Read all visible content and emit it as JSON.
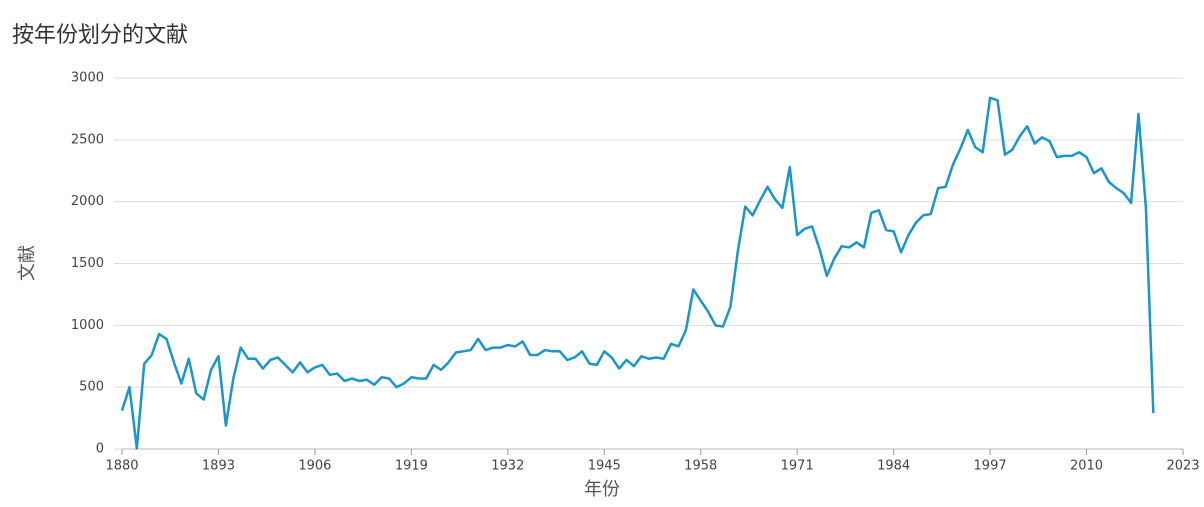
{
  "chart_data": {
    "type": "line",
    "title": "按年份划分的文献",
    "x_label": "年份",
    "y_label": "文献",
    "x": [
      1880,
      1881,
      1882,
      1883,
      1884,
      1885,
      1886,
      1887,
      1888,
      1889,
      1890,
      1891,
      1892,
      1893,
      1894,
      1895,
      1896,
      1897,
      1898,
      1899,
      1900,
      1901,
      1902,
      1903,
      1904,
      1905,
      1906,
      1907,
      1908,
      1909,
      1910,
      1911,
      1912,
      1913,
      1914,
      1915,
      1916,
      1917,
      1918,
      1919,
      1920,
      1921,
      1922,
      1923,
      1924,
      1925,
      1926,
      1927,
      1928,
      1929,
      1930,
      1931,
      1932,
      1933,
      1934,
      1935,
      1936,
      1937,
      1938,
      1939,
      1940,
      1941,
      1942,
      1943,
      1944,
      1945,
      1946,
      1947,
      1948,
      1949,
      1950,
      1951,
      1952,
      1953,
      1954,
      1955,
      1956,
      1957,
      1958,
      1959,
      1960,
      1961,
      1962,
      1963,
      1964,
      1965,
      1966,
      1967,
      1968,
      1969,
      1970,
      1971,
      1972,
      1973,
      1974,
      1975,
      1976,
      1977,
      1978,
      1979,
      1980,
      1981,
      1982,
      1983,
      1984,
      1985,
      1986,
      1987,
      1988,
      1989,
      1990,
      1991,
      1992,
      1993,
      1994,
      1995,
      1996,
      1997,
      1998,
      1999,
      2000,
      2001,
      2002,
      2003,
      2004,
      2005,
      2006,
      2007,
      2008,
      2009,
      2010,
      2011,
      2012,
      2013,
      2014,
      2015,
      2016,
      2017,
      2018,
      2019
    ],
    "series": [
      {
        "name": "文献",
        "color": "#1a96c8",
        "values": [
          310,
          500,
          5,
          690,
          760,
          930,
          890,
          700,
          530,
          730,
          450,
          400,
          640,
          750,
          190,
          570,
          820,
          730,
          730,
          650,
          720,
          740,
          680,
          620,
          700,
          620,
          660,
          680,
          600,
          610,
          550,
          570,
          550,
          560,
          520,
          580,
          570,
          500,
          530,
          580,
          570,
          570,
          680,
          640,
          700,
          780,
          790,
          800,
          890,
          800,
          820,
          820,
          840,
          830,
          870,
          760,
          760,
          800,
          790,
          790,
          720,
          740,
          790,
          690,
          680,
          790,
          740,
          650,
          720,
          670,
          750,
          730,
          740,
          730,
          850,
          830,
          960,
          1290,
          1200,
          1110,
          1000,
          990,
          1150,
          1600,
          1960,
          1890,
          2010,
          2120,
          2020,
          1950,
          2280,
          1730,
          1780,
          1800,
          1620,
          1400,
          1540,
          1640,
          1630,
          1670,
          1630,
          1910,
          1930,
          1770,
          1760,
          1590,
          1730,
          1830,
          1890,
          1900,
          2110,
          2120,
          2300,
          2430,
          2580,
          2440,
          2400,
          2840,
          2820,
          2380,
          2420,
          2530,
          2610,
          2470,
          2520,
          2490,
          2360,
          2370,
          2370,
          2400,
          2360,
          2230,
          2270,
          2160,
          2110,
          2070,
          1990,
          2710,
          1950,
          290
        ]
      }
    ],
    "xlim": [
      1880,
      2023
    ],
    "xticks": [
      1880,
      1893,
      1906,
      1919,
      1932,
      1945,
      1958,
      1971,
      1984,
      1997,
      2010,
      2023
    ],
    "ylim": [
      0,
      3000
    ],
    "yticks": [
      0,
      500,
      1000,
      1500,
      2000,
      2500,
      3000
    ],
    "grid": true
  }
}
